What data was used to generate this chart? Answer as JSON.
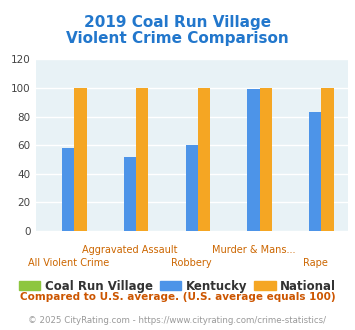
{
  "title_line1": "2019 Coal Run Village",
  "title_line2": "Violent Crime Comparison",
  "categories_line1": [
    "All Violent Crime",
    "Aggravated Assault",
    "Robbery",
    "Murder & Mans...",
    "Rape"
  ],
  "categories_line2": [
    "",
    "",
    "",
    "",
    ""
  ],
  "tick_labels": [
    "All Violent Crime",
    "Aggravated Assault",
    "Robbery",
    "Murder & Mans...",
    "Rape"
  ],
  "tick_labels_upper": [
    "",
    "Aggravated Assault",
    "",
    "Murder & Mans...",
    ""
  ],
  "tick_labels_lower": [
    "All Violent Crime",
    "",
    "Robbery",
    "",
    "Rape"
  ],
  "series": {
    "Coal Run Village": [
      0,
      0,
      0,
      0,
      0
    ],
    "Kentucky": [
      58,
      52,
      60,
      99,
      83
    ],
    "National": [
      100,
      100,
      100,
      100,
      100
    ]
  },
  "colors": {
    "Coal Run Village": "#8dc63f",
    "Kentucky": "#4d94e8",
    "National": "#f5a623"
  },
  "ylim": [
    0,
    120
  ],
  "yticks": [
    0,
    20,
    40,
    60,
    80,
    100,
    120
  ],
  "background_color": "#e8f2f6",
  "grid_color": "#ffffff",
  "title_color": "#2277cc",
  "xtick_upper_color": "#cc6600",
  "xtick_lower_color": "#cc6600",
  "legend_text_color": "#333333",
  "footnote1": "Compared to U.S. average. (U.S. average equals 100)",
  "footnote2": "© 2025 CityRating.com - https://www.cityrating.com/crime-statistics/",
  "footnote1_color": "#cc5500",
  "footnote2_color": "#999999",
  "footnote2_url_color": "#4488cc"
}
